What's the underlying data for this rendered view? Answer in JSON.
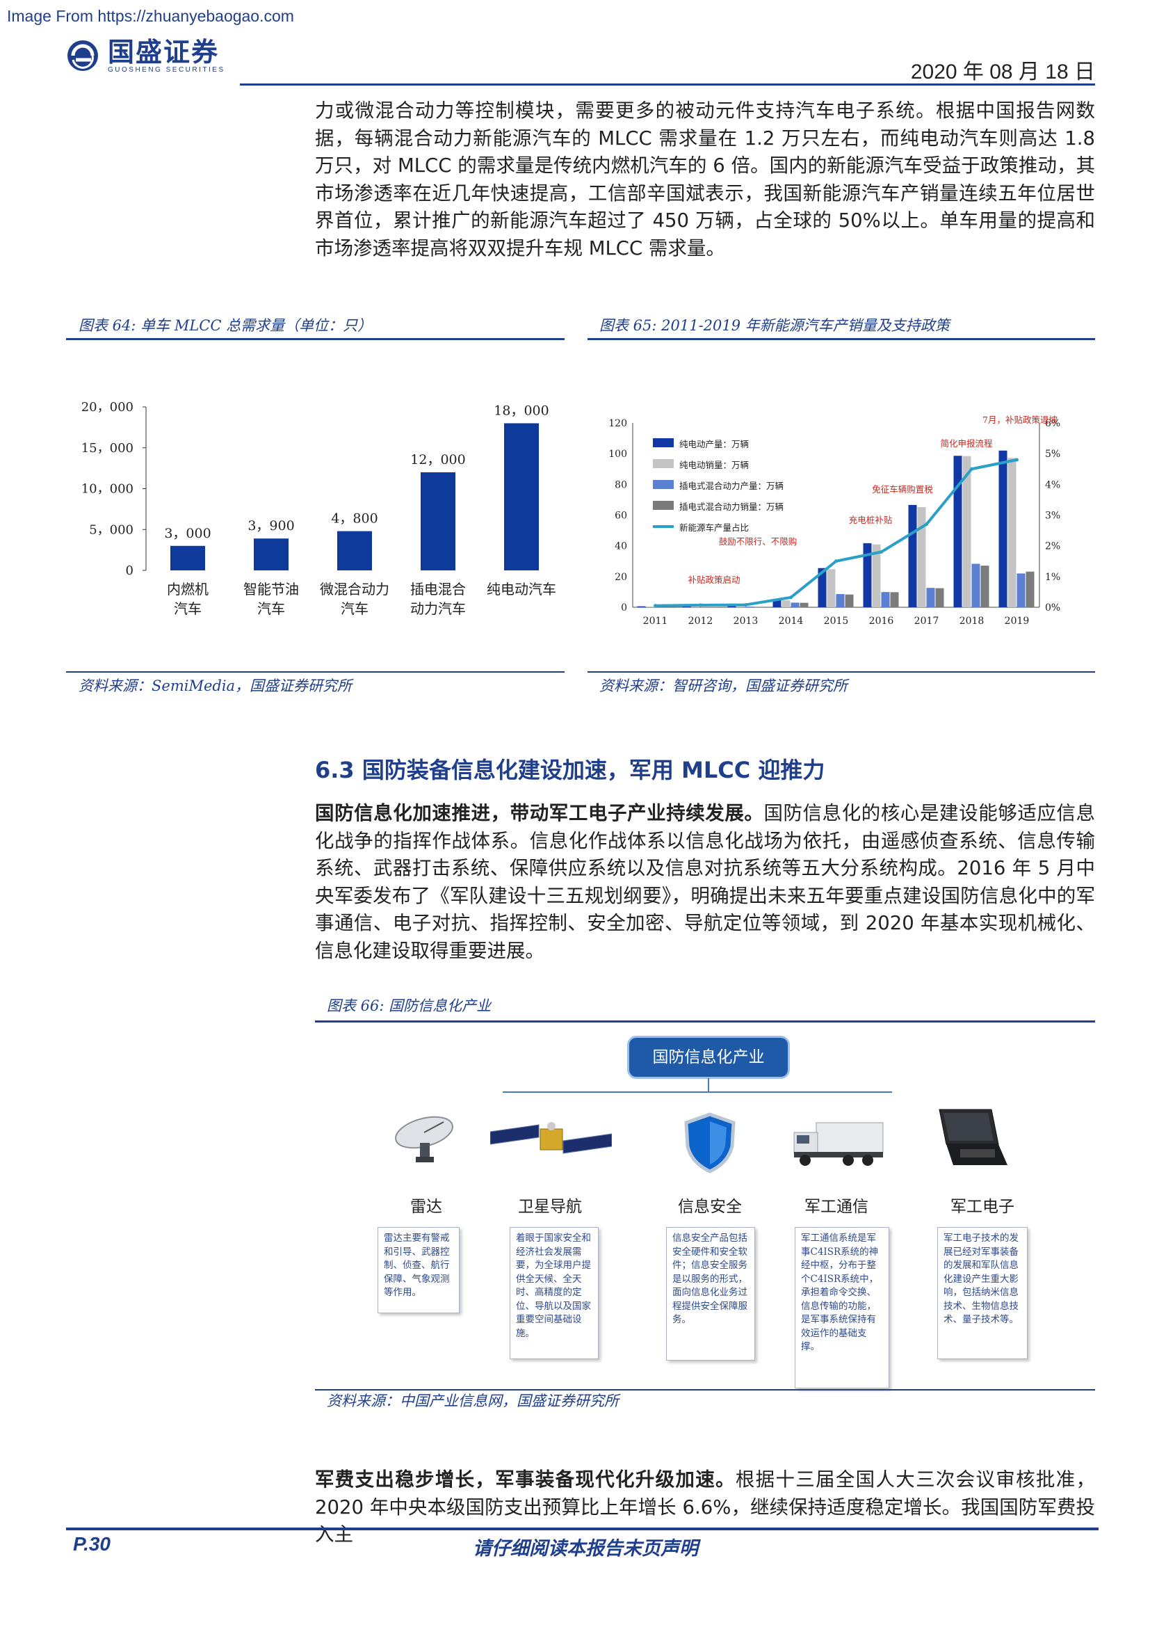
{
  "watermark": "Image From https://zhuanyebaogao.com",
  "header": {
    "brand_cn": "国盛证券",
    "brand_en": "GUOSHENG SECURITIES",
    "date": "2020 年 08 月 18 日"
  },
  "paragraphs": {
    "p1": "力或微混合动力等控制模块，需要更多的被动元件支持汽车电子系统。根据中国报告网数据，每辆混合动力新能源汽车的 MLCC 需求量在 1.2 万只左右，而纯电动汽车则高达 1.8 万只，对 MLCC 的需求量是传统内燃机汽车的 6 倍。国内的新能源汽车受益于政策推动，其市场渗透率在近几年快速提高，工信部辛国斌表示，我国新能源汽车产销量连续五年位居世界首位，累计推广的新能源汽车超过了 450 万辆，占全球的 50%以上。单车用量的提高和市场渗透率提高将双双提升车规 MLCC 需求量。",
    "p2_bold": "国防信息化加速推进，带动军工电子产业持续发展。",
    "p2": "国防信息化的核心是建设能够适应信息化战争的指挥作战体系。信息化作战体系以信息化战场为依托，由遥感侦查系统、信息传输系统、武器打击系统、保障供应系统以及信息对抗系统等五大分系统构成。2016 年 5 月中央军委发布了《军队建设十三五规划纲要》，明确提出未来五年要重点建设国防信息化中的军事通信、电子对抗、指挥控制、安全加密、导航定位等领域，到 2020 年基本实现机械化、信息化建设取得重要进展。",
    "p3_bold": "军费支出稳步增长，军事装备现代化升级加速。",
    "p3": "根据十三届全国人大三次会议审核批准，2020 年中央本级国防支出预算比上年增长 6.6%，继续保持适度稳定增长。我国国防军费投入主"
  },
  "section_title": "6.3  国防装备信息化建设加速，军用 MLCC 迎推力",
  "fig64": {
    "title": "图表 64:  单车 MLCC 总需求量（单位：只）",
    "source": "资料来源：SemiMedia，国盛证券研究所"
  },
  "fig65": {
    "title": "图表 65:  2011-2019 年新能源汽车产销量及支持政策",
    "source": "资料来源：智研咨询，国盛证券研究所",
    "annotations": [
      "补贴政策启动",
      "鼓励不限行、不限购",
      "充电桩补贴",
      "免征车辆购置税",
      "简化申报流程",
      "7月，补贴政策退坡"
    ]
  },
  "fig66": {
    "title": "图表 66:  国防信息化产业",
    "source": "资料来源：中国产业信息网，国盛证券研究所",
    "root": "国防信息化产业",
    "categories": [
      {
        "name": "雷达",
        "icon": "radar-dish-icon",
        "desc": "雷达主要有警戒和引导、武器控制、侦查、航行保障、气象观测等作用。"
      },
      {
        "name": "卫星导航",
        "icon": "satellite-icon",
        "desc": "着眼于国家安全和经济社会发展需要，为全球用户提供全天候、全天时、高精度的定位、导航以及国家重要空间基础设施。"
      },
      {
        "name": "信息安全",
        "icon": "shield-icon",
        "desc": "信息安全产品包括安全硬件和安全软件；信息安全服务是以服务的形式，面向信息化业务过程提供安全保障服务。"
      },
      {
        "name": "军工通信",
        "icon": "military-truck-icon",
        "desc": "军工通信系统是军事C4ISR系统的神经中枢，分布于整个C4ISR系统中，承担着命令交换、信息传输的功能，是军事系统保持有效运作的基础支撑。"
      },
      {
        "name": "军工电子",
        "icon": "rugged-laptop-icon",
        "desc": "军工电子技术的发展已经对军事装备的发展和军队信息化建设产生重大影响，包括纳米信息技术、生物信息技术、量子技术等。"
      }
    ]
  },
  "footer": {
    "page": "P.30",
    "disclaimer": "请仔细阅读本报告末页声明"
  },
  "chart_data": [
    {
      "type": "bar",
      "title": "图表 64:  单车 MLCC 总需求量（单位：只）",
      "categories": [
        "内燃机汽车",
        "智能节油汽车",
        "微混合动力汽车",
        "插电混合动力汽车",
        "纯电动汽车"
      ],
      "category_lines": [
        [
          "内燃机",
          "汽车"
        ],
        [
          "智能节油",
          "汽车"
        ],
        [
          "微混合动力",
          "汽车"
        ],
        [
          "插电混合",
          "动力汽车"
        ],
        [
          "纯电动汽车",
          ""
        ]
      ],
      "values": [
        3000,
        3900,
        4800,
        12000,
        18000
      ],
      "value_labels": [
        "3，000",
        "3，900",
        "4，800",
        "12，000",
        "18，000"
      ],
      "ylim": [
        0,
        20000
      ],
      "yticks": [
        0,
        5000,
        10000,
        15000,
        20000
      ],
      "ytick_labels": [
        "0",
        "5，000",
        "10，000",
        "15，000",
        "20，000"
      ],
      "color": "#0e3a9c",
      "grid": false
    },
    {
      "type": "bar",
      "title": "图表 65:  2011-2019 年新能源汽车产销量及支持政策",
      "categories": [
        "2011",
        "2012",
        "2013",
        "2014",
        "2015",
        "2016",
        "2017",
        "2018",
        "2019"
      ],
      "y_left": {
        "ylim": [
          0,
          120
        ],
        "ticks": [
          0,
          20,
          40,
          60,
          80,
          100,
          120
        ]
      },
      "y_right": {
        "ylim": [
          0,
          6
        ],
        "ticks": [
          "0%",
          "1%",
          "2%",
          "3%",
          "4%",
          "5%",
          "6%"
        ]
      },
      "series": [
        {
          "name": "纯电动产量：万辆",
          "kind": "bar",
          "color": "#1238a6",
          "values": [
            0.6,
            1.1,
            1.4,
            4.9,
            25.5,
            41.7,
            66.6,
            98.6,
            102
          ]
        },
        {
          "name": "纯电动销量：万辆",
          "kind": "bar",
          "color": "#c4c4c4",
          "values": [
            0.5,
            1.0,
            1.3,
            4.5,
            24.8,
            40.9,
            65.2,
            98.4,
            97.2
          ]
        },
        {
          "name": "插电式混合动力产量：万辆",
          "kind": "bar",
          "color": "#5b7fd1",
          "values": [
            0.1,
            0.1,
            0.4,
            3.0,
            8.6,
            9.9,
            12.6,
            28.3,
            22.0
          ]
        },
        {
          "name": "插电式混合动力销量：万辆",
          "kind": "bar",
          "color": "#7b7b7b",
          "values": [
            0.1,
            0.1,
            0.3,
            2.9,
            8.3,
            9.8,
            12.4,
            27.1,
            23.2
          ]
        },
        {
          "name": "新能源车产量占比",
          "kind": "line",
          "axis": "right",
          "color": "#2aa0c8",
          "values": [
            0.05,
            0.07,
            0.08,
            0.32,
            1.5,
            1.8,
            2.7,
            4.5,
            4.8
          ]
        }
      ],
      "legend_position": "top-left",
      "grid": false
    }
  ]
}
